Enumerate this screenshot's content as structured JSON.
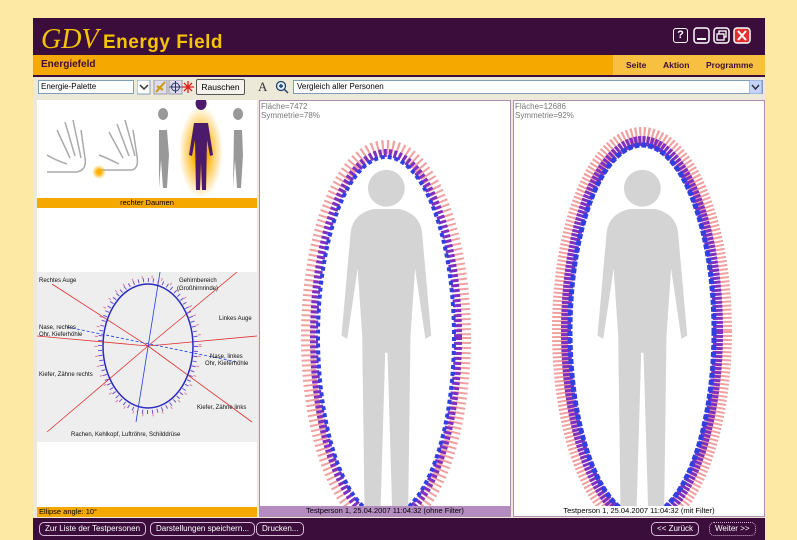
{
  "app": {
    "logo": "GDV",
    "title": "Energy Field",
    "help": "?"
  },
  "menubar": {
    "section": "Energiefeld",
    "tabs": [
      "Seite",
      "Aktion",
      "Programme"
    ]
  },
  "toolbar": {
    "palette": "Energie-Palette",
    "noise_button": "Rauschen",
    "font_icon": "A",
    "view": "Vergleich aller Personen"
  },
  "left_panel": {
    "selected_finger": "rechter Daumen",
    "sectors": [
      "Rechtes Auge",
      "Gehirnbereich",
      "(Großhirnrinde)",
      "Linkes Auge",
      "Nase, rechtes",
      "Ohr, Kieferhöhle",
      "Nase, linkes",
      "Ohr, Kieferhöhle",
      "Kiefer, Zähne rechts",
      "Kiefer, Zähne links",
      "Rachen, Kehlkopf, Luftröhre, Schilddrüse"
    ],
    "footer": "Ellipse angle: 10°"
  },
  "panels": [
    {
      "area": "Fläche=7472",
      "symmetry": "Symmetrie=78%",
      "caption": "Testperson 1, 25.04.2007 11:04:32 (ohne Filter)"
    },
    {
      "area": "Fläche=12686",
      "symmetry": "Symmetrie=92%",
      "caption": "Testperson 1, 25.04.2007 11:04:32 (mit Filter)"
    }
  ],
  "bottom_bar": {
    "buttons": [
      "Zur Liste der Testpersonen",
      "Darstellungen speichern...",
      "Drucken..."
    ],
    "back": "<< Zurück",
    "next": "Weiter >>"
  }
}
